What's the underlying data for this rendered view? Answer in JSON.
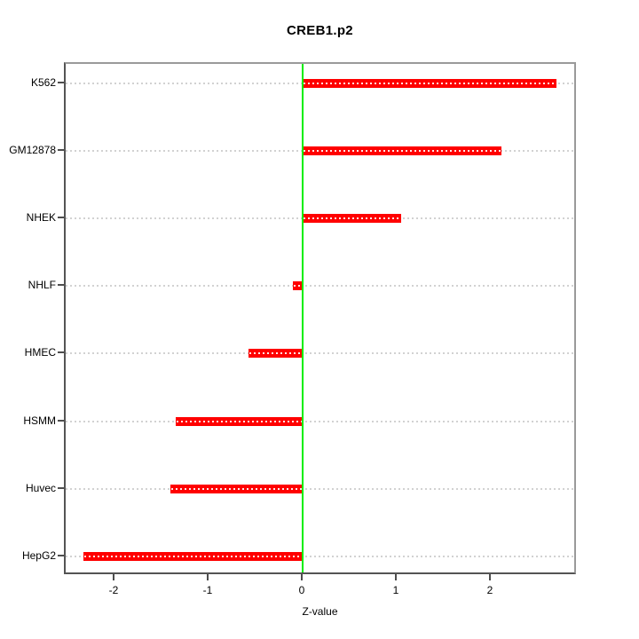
{
  "chart_data": {
    "type": "bar",
    "orientation": "horizontal",
    "title": "CREB1.p2",
    "xlabel": "Z-value",
    "ylabel": "",
    "categories": [
      "K562",
      "GM12878",
      "NHEK",
      "NHLF",
      "HMEC",
      "HSMM",
      "Huvec",
      "HepG2"
    ],
    "values": [
      2.7,
      2.11,
      1.05,
      -0.1,
      -0.58,
      -1.35,
      -1.41,
      -2.33
    ],
    "xticks": [
      "-2",
      "-1",
      "0",
      "1",
      "2"
    ],
    "xtick_values": [
      -2,
      -1,
      0,
      1,
      2
    ],
    "xlim": [
      -2.53,
      2.92
    ],
    "grid": "dotted-horizontal-per-category",
    "legend": "none",
    "zero_reference_line": 0,
    "colors": {
      "bar": "#ff0000",
      "zero_line": "#00ee00",
      "grid": "#d2d2d2",
      "frame_light": "#9a9a9a",
      "frame_dark": "#545454",
      "tick": "#4d4d4d",
      "text": "#000000",
      "background": "#ffffff"
    }
  }
}
